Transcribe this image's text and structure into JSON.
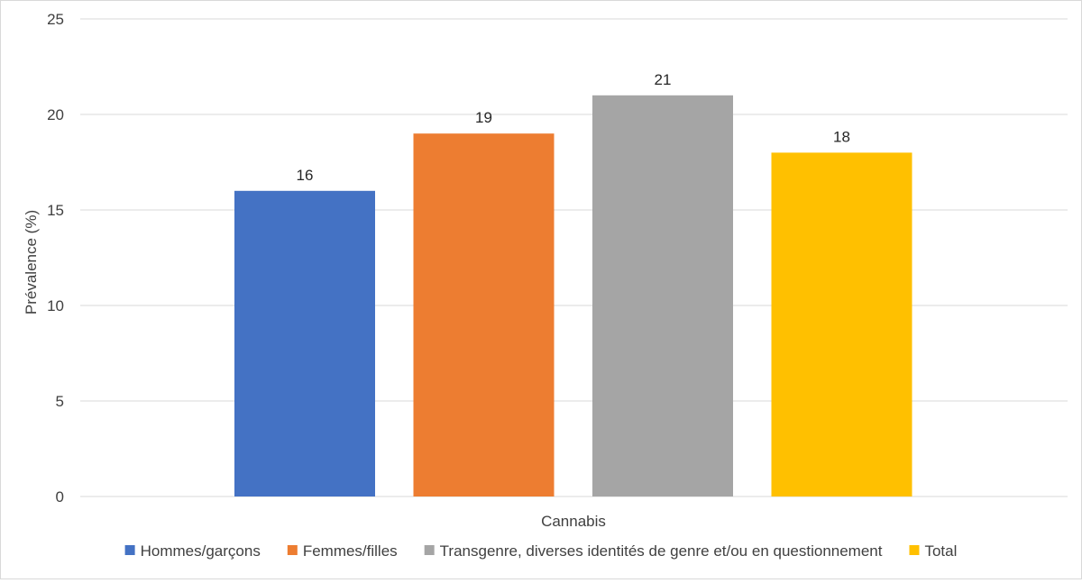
{
  "chart_data": {
    "type": "bar",
    "categories": [
      "Cannabis"
    ],
    "series": [
      {
        "name": "Hommes/garçons",
        "values": [
          16
        ],
        "color": "#4472c4"
      },
      {
        "name": "Femmes/filles",
        "values": [
          19
        ],
        "color": "#ed7d31"
      },
      {
        "name": "Transgenre, diverses identités de genre et/ou en questionnement",
        "values": [
          21
        ],
        "color": "#a5a5a5"
      },
      {
        "name": "Total",
        "values": [
          18
        ],
        "color": "#ffc000"
      }
    ],
    "ylabel": "Prévalence (%)",
    "xlabel": "",
    "ylim": [
      0,
      25
    ],
    "yticks": [
      0,
      5,
      10,
      15,
      20,
      25
    ],
    "grid": true,
    "legend_position": "bottom",
    "data_labels": true,
    "colors": {
      "grid": "#d9d9d9",
      "text": "#404040"
    }
  }
}
